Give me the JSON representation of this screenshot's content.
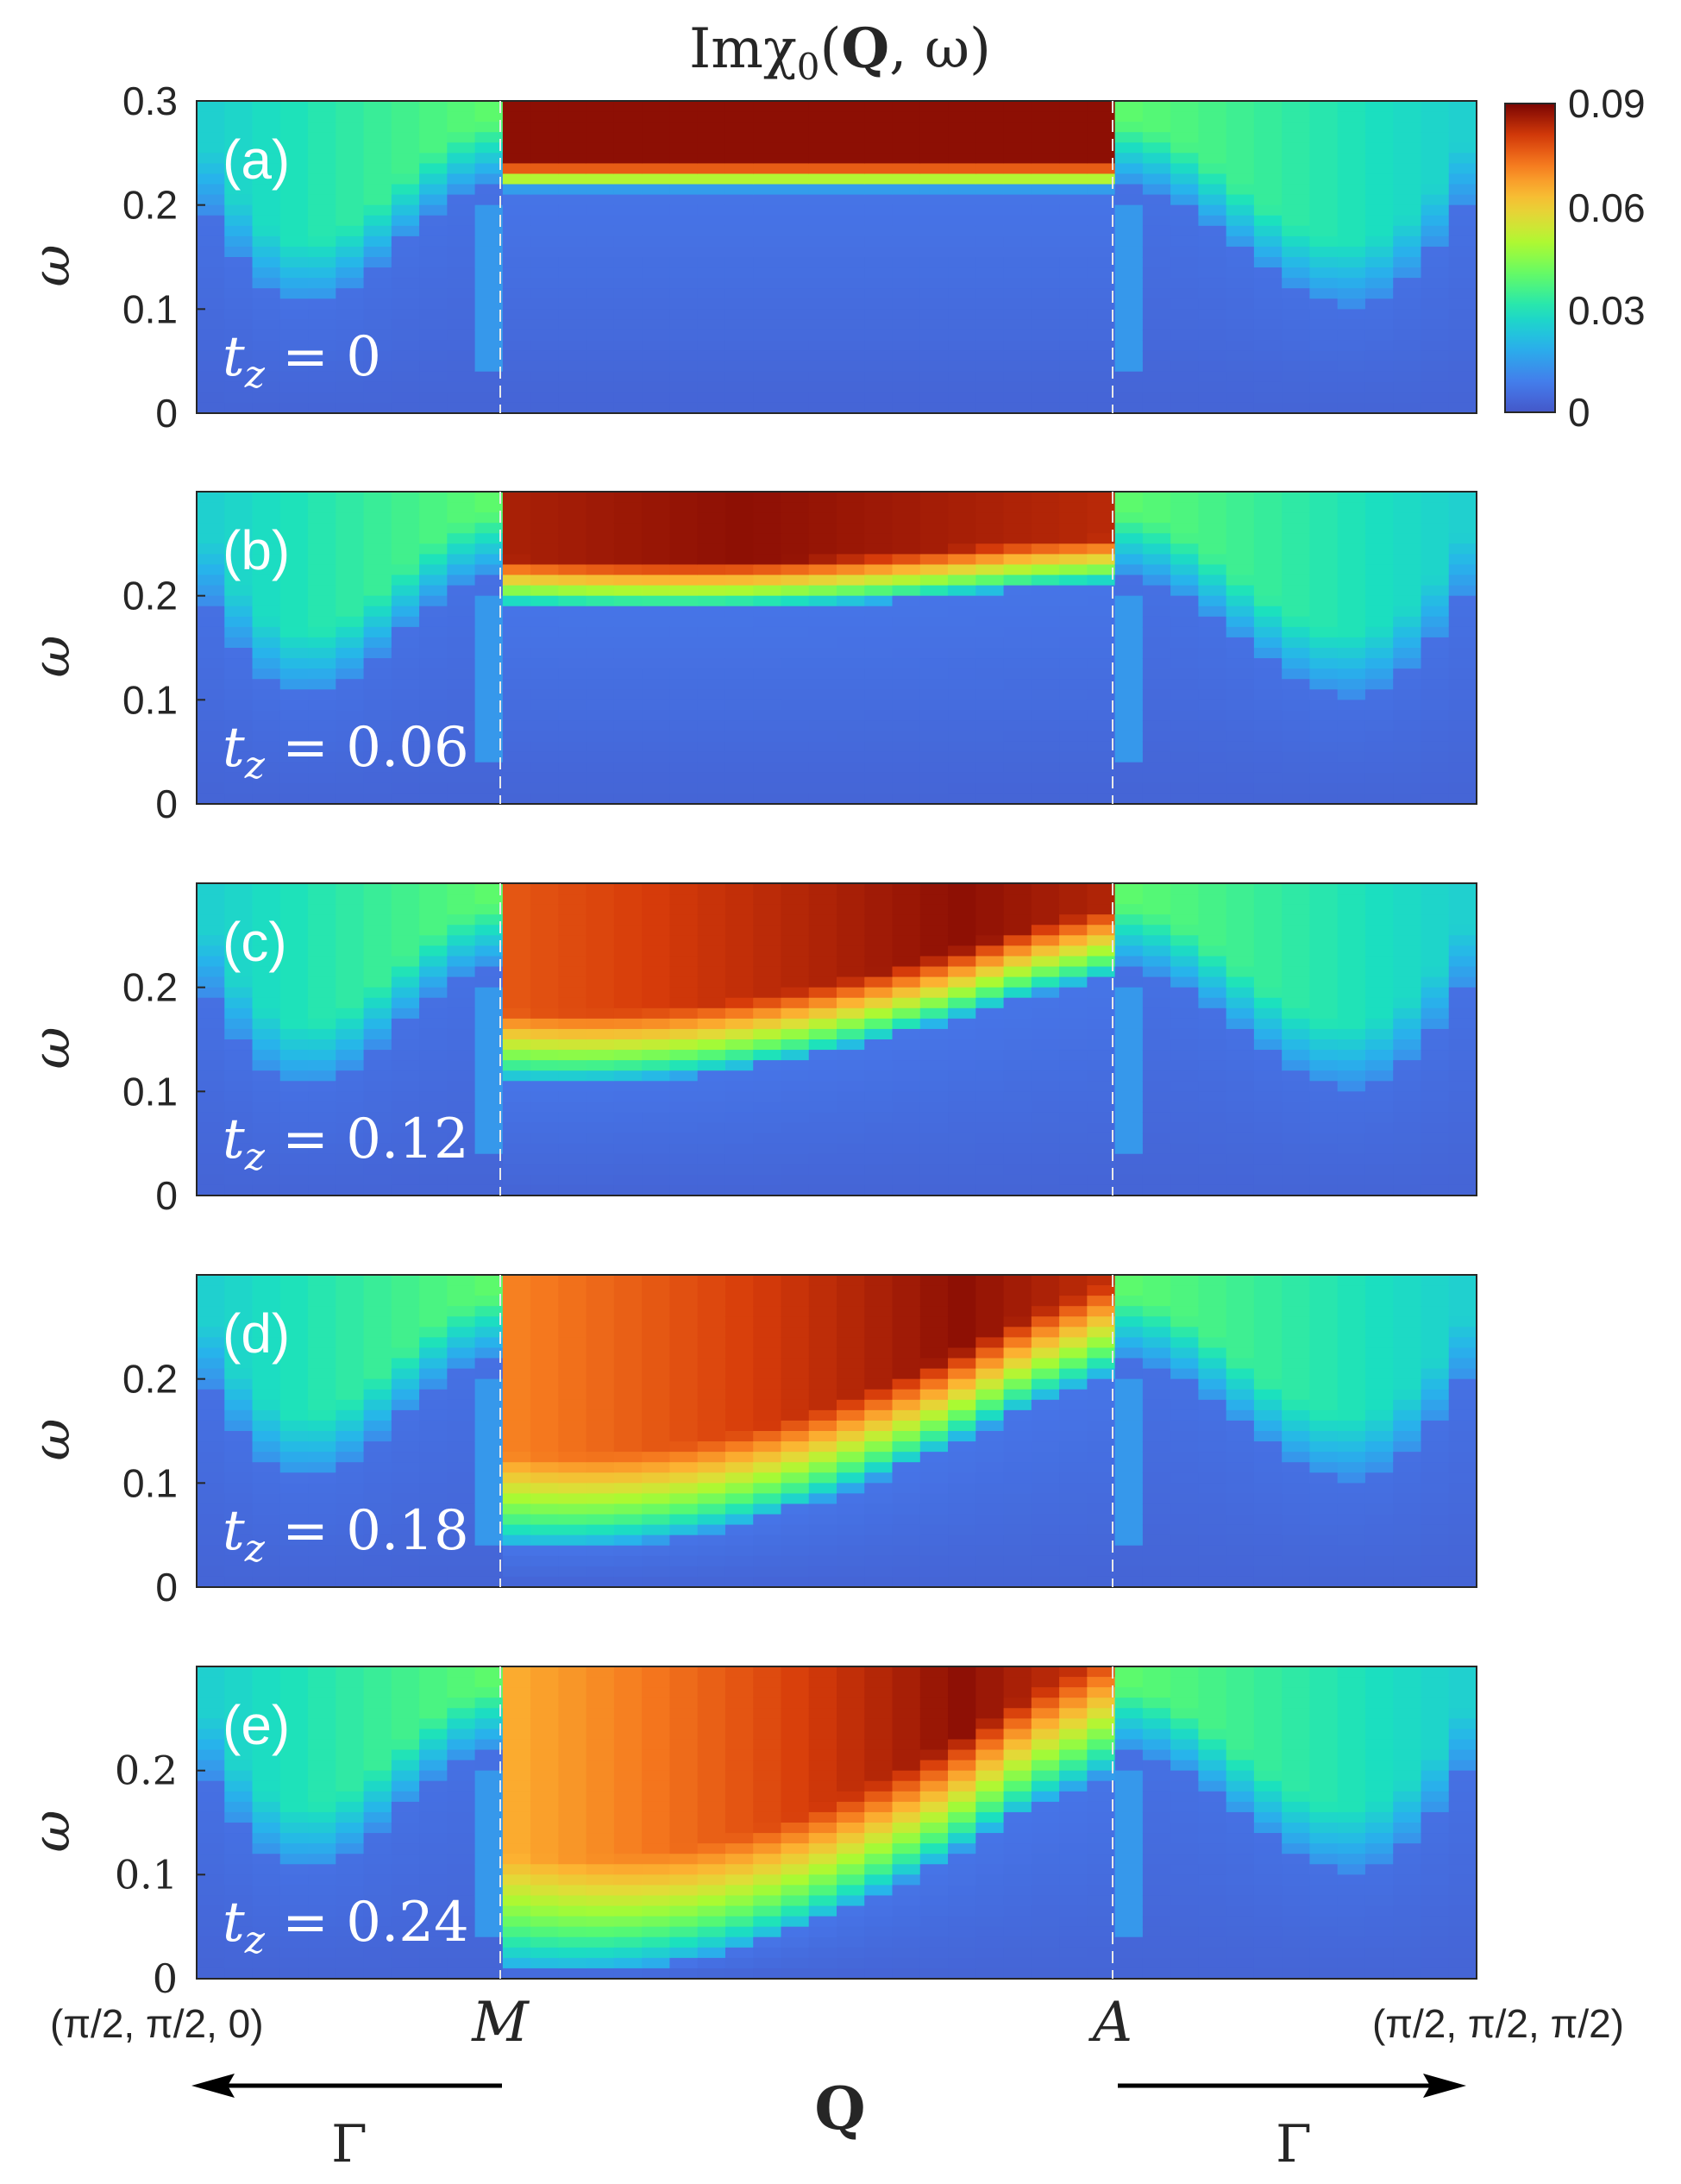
{
  "title": {
    "prefix": "Imχ",
    "sub": "0",
    "bold": "Q",
    "suffix": ", ω)",
    "open": "("
  },
  "ylabel": "ω",
  "colorbar": {
    "ticks": [
      "0.09",
      "0.06",
      "0.03",
      "0"
    ],
    "range": [
      0,
      0.09
    ],
    "colormap": "turbo"
  },
  "xaxis": {
    "left_label": "(π/2, π/2, 0)",
    "right_label": "(π/2, π/2, π/2)",
    "m_label": "M",
    "a_label": "A",
    "q_label": "Q",
    "gamma_left": "Γ",
    "gamma_right": "Γ"
  },
  "chart_data": {
    "type": "heatmap",
    "xlabel": "Q",
    "ylabel": "ω",
    "zlabel": "Imχ0(Q,ω)",
    "ylim": [
      0,
      0.3
    ],
    "zlim": [
      0,
      0.09
    ],
    "x_segments": [
      "Γ→M",
      "M→A",
      "A→Γ"
    ],
    "grid": false,
    "panels": [
      {
        "label": "(a)",
        "tz_text": "t",
        "tz_sub": "z",
        "tz_value": "= 0",
        "tz": 0,
        "yticks": [
          "0.3",
          "0.2",
          "0.1",
          "0"
        ],
        "gap_M": 0.215,
        "gap_A": 0.215,
        "peak": 0.088
      },
      {
        "label": "(b)",
        "tz_text": "t",
        "tz_sub": "z",
        "tz_value": "= 0.06",
        "tz": 0.06,
        "yticks": [
          "0.2",
          "0.1",
          "0"
        ],
        "gap_M": 0.19,
        "gap_A": 0.21,
        "peak": 0.088
      },
      {
        "label": "(c)",
        "tz_text": "t",
        "tz_sub": "z",
        "tz_value": "= 0.12",
        "tz": 0.12,
        "yticks": [
          "0.2",
          "0.1",
          "0"
        ],
        "gap_M": 0.11,
        "gap_A": 0.21,
        "peak": 0.088
      },
      {
        "label": "(d)",
        "tz_text": "t",
        "tz_sub": "z",
        "tz_value": "= 0.18",
        "tz": 0.18,
        "yticks": [
          "0.2",
          "0.1",
          "0"
        ],
        "gap_M": 0.04,
        "gap_A": 0.205,
        "peak": 0.088
      },
      {
        "label": "(e)",
        "tz_text": "t",
        "tz_sub": "z",
        "tz_value": "= 0.24",
        "tz": 0.24,
        "yticks": [
          "0.2",
          "0.1",
          "0"
        ],
        "gap_M": 0.01,
        "gap_A": 0.2,
        "peak": 0.088
      }
    ]
  }
}
